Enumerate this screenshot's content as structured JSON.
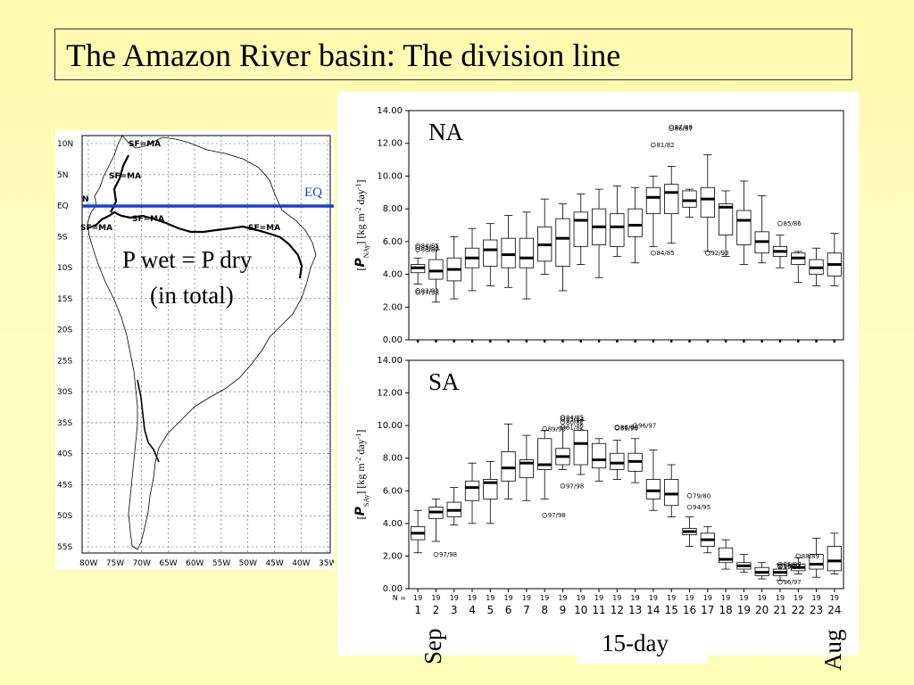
{
  "slide": {
    "title": "The Amazon River basin: The division line"
  },
  "map": {
    "lat_ticks": [
      "10N",
      "5N",
      "EQ",
      "5S",
      "10S",
      "15S",
      "20S",
      "25S",
      "30S",
      "35S",
      "40S",
      "45S",
      "50S",
      "55S"
    ],
    "lon_ticks": [
      "80W",
      "75W",
      "70W",
      "65W",
      "60W",
      "55W",
      "50W",
      "45W",
      "40W",
      "35W"
    ],
    "region_labels": [
      {
        "text": "SF=MA"
      },
      {
        "text": "SF=MA"
      },
      {
        "text": "SF=MA"
      },
      {
        "text": "SF=MA"
      },
      {
        "text": "SF=MA"
      },
      {
        "text": "N"
      }
    ],
    "eq_label": "EQ",
    "eq_line_color": "#1b3fd1",
    "annotation_line1": "P wet = P dry",
    "annotation_line2": "(in total)"
  },
  "chart_data": [
    {
      "type": "box",
      "panel_label": "NA",
      "ylabel_prefix": "[",
      "ylabel_symbol": "P",
      "ylabel_subscript": "NAy",
      "ylabel_unit": "] [kg m",
      "ylabel_exp1": "-2",
      "ylabel_mid": " day",
      "ylabel_exp2": "-1",
      "ylabel_end": "]",
      "ylim": [
        0,
        14
      ],
      "yticks": [
        "0.00",
        "2.00",
        "4.00",
        "6.00",
        "8.00",
        "10.00",
        "12.00",
        "14.00"
      ],
      "periods": [
        1,
        2,
        3,
        4,
        5,
        6,
        7,
        8,
        9,
        10,
        11,
        12,
        13,
        14,
        15,
        16,
        17,
        18,
        19,
        20,
        21,
        22,
        23,
        24
      ],
      "boxes": [
        {
          "min": 3.4,
          "q1": 4.1,
          "median": 4.4,
          "q3": 4.6,
          "max": 5.0
        },
        {
          "min": 2.3,
          "q1": 3.7,
          "median": 4.2,
          "q3": 4.9,
          "max": 5.5
        },
        {
          "min": 2.5,
          "q1": 3.6,
          "median": 4.3,
          "q3": 5.0,
          "max": 6.3
        },
        {
          "min": 3.0,
          "q1": 4.4,
          "median": 5.0,
          "q3": 5.6,
          "max": 6.8
        },
        {
          "min": 3.3,
          "q1": 4.5,
          "median": 5.5,
          "q3": 6.1,
          "max": 7.1
        },
        {
          "min": 3.2,
          "q1": 4.4,
          "median": 5.2,
          "q3": 6.2,
          "max": 7.6
        },
        {
          "min": 2.5,
          "q1": 4.4,
          "median": 5.0,
          "q3": 6.2,
          "max": 7.8
        },
        {
          "min": 4.0,
          "q1": 4.8,
          "median": 5.8,
          "q3": 6.9,
          "max": 8.6
        },
        {
          "min": 3.0,
          "q1": 4.5,
          "median": 6.2,
          "q3": 7.4,
          "max": 8.3
        },
        {
          "min": 4.6,
          "q1": 5.7,
          "median": 7.3,
          "q3": 7.8,
          "max": 8.9
        },
        {
          "min": 3.8,
          "q1": 5.8,
          "median": 6.9,
          "q3": 8.0,
          "max": 9.2
        },
        {
          "min": 5.1,
          "q1": 5.7,
          "median": 6.9,
          "q3": 7.7,
          "max": 9.4
        },
        {
          "min": 4.7,
          "q1": 6.3,
          "median": 7.0,
          "q3": 8.0,
          "max": 9.3
        },
        {
          "min": 5.7,
          "q1": 7.7,
          "median": 8.7,
          "q3": 9.3,
          "max": 10.0
        },
        {
          "min": 5.9,
          "q1": 7.7,
          "median": 9.0,
          "q3": 9.5,
          "max": 10.6
        },
        {
          "min": 7.5,
          "q1": 8.1,
          "median": 8.5,
          "q3": 9.1,
          "max": 9.2
        },
        {
          "min": 5.4,
          "q1": 7.5,
          "median": 8.6,
          "q3": 9.3,
          "max": 11.3
        },
        {
          "min": 5.1,
          "q1": 6.4,
          "median": 8.1,
          "q3": 8.3,
          "max": 9.1
        },
        {
          "min": 4.6,
          "q1": 5.8,
          "median": 7.3,
          "q3": 7.9,
          "max": 9.7
        },
        {
          "min": 4.7,
          "q1": 5.3,
          "median": 6.0,
          "q3": 6.6,
          "max": 8.8
        },
        {
          "min": 4.4,
          "q1": 5.1,
          "median": 5.4,
          "q3": 5.7,
          "max": 6.4
        },
        {
          "min": 3.5,
          "q1": 4.6,
          "median": 5.0,
          "q3": 5.3,
          "max": 5.4
        },
        {
          "min": 3.3,
          "q1": 4.0,
          "median": 4.4,
          "q3": 4.9,
          "max": 5.6
        },
        {
          "min": 3.3,
          "q1": 3.9,
          "median": 4.6,
          "q3": 5.3,
          "max": 6.5
        }
      ],
      "outliers": [
        {
          "period": 1,
          "y": 5.75,
          "label": "84/85"
        },
        {
          "period": 1,
          "y": 5.65,
          "label": "85/86"
        },
        {
          "period": 1,
          "y": 5.5,
          "label": "86/87"
        },
        {
          "period": 1,
          "y": 3.0,
          "label": "92/93"
        },
        {
          "period": 1,
          "y": 2.9,
          "label": "97/98"
        },
        {
          "period": 14,
          "y": 11.9,
          "label": "81/82"
        },
        {
          "period": 15,
          "y": 13.0,
          "label": "87/88"
        },
        {
          "period": 15,
          "y": 12.9,
          "label": "86/87"
        },
        {
          "period": 14,
          "y": 5.3,
          "label": "84/85"
        },
        {
          "period": 17,
          "y": 5.3,
          "label": "92/93"
        },
        {
          "period": 21,
          "y": 7.1,
          "label": "85/86"
        }
      ]
    },
    {
      "type": "box",
      "panel_label": "SA",
      "ylabel_prefix": "[",
      "ylabel_symbol": "P",
      "ylabel_subscript": "SAy",
      "ylabel_unit": "] [kg m",
      "ylabel_exp1": "-2",
      "ylabel_mid": " day",
      "ylabel_exp2": "-1",
      "ylabel_end": "]",
      "ylim": [
        0,
        14
      ],
      "yticks": [
        "0.00",
        "2.00",
        "4.00",
        "6.00",
        "8.00",
        "10.00",
        "12.00",
        "14.00"
      ],
      "periods": [
        1,
        2,
        3,
        4,
        5,
        6,
        7,
        8,
        9,
        10,
        11,
        12,
        13,
        14,
        15,
        16,
        17,
        18,
        19,
        20,
        21,
        22,
        23,
        24
      ],
      "n_label": "N =",
      "n_values": [
        "19",
        "19",
        "19",
        "19",
        "19",
        "19",
        "19",
        "19",
        "19",
        "19",
        "19",
        "19",
        "19",
        "19",
        "19",
        "19",
        "19",
        "19",
        "19",
        "19",
        "19",
        "19",
        "19",
        "19"
      ],
      "boxes": [
        {
          "min": 2.2,
          "q1": 3.0,
          "median": 3.4,
          "q3": 3.8,
          "max": 4.8
        },
        {
          "min": 2.9,
          "q1": 4.3,
          "median": 4.7,
          "q3": 5.0,
          "max": 5.5
        },
        {
          "min": 3.9,
          "q1": 4.4,
          "median": 4.8,
          "q3": 5.3,
          "max": 6.2
        },
        {
          "min": 4.0,
          "q1": 5.4,
          "median": 6.2,
          "q3": 6.6,
          "max": 7.7
        },
        {
          "min": 4.0,
          "q1": 5.5,
          "median": 6.5,
          "q3": 6.7,
          "max": 7.8
        },
        {
          "min": 5.5,
          "q1": 6.6,
          "median": 7.4,
          "q3": 8.4,
          "max": 10.1
        },
        {
          "min": 5.4,
          "q1": 6.8,
          "median": 7.7,
          "q3": 7.9,
          "max": 9.4
        },
        {
          "min": 5.5,
          "q1": 7.3,
          "median": 7.6,
          "q3": 9.2,
          "max": 9.7
        },
        {
          "min": 7.3,
          "q1": 7.6,
          "median": 8.1,
          "q3": 8.6,
          "max": 9.9
        },
        {
          "min": 7.0,
          "q1": 7.6,
          "median": 8.9,
          "q3": 9.7,
          "max": 10.3
        },
        {
          "min": 6.6,
          "q1": 7.4,
          "median": 7.9,
          "q3": 8.9,
          "max": 9.2
        },
        {
          "min": 6.7,
          "q1": 7.3,
          "median": 7.7,
          "q3": 8.3,
          "max": 9.1
        },
        {
          "min": 6.5,
          "q1": 7.2,
          "median": 7.8,
          "q3": 8.3,
          "max": 9.2
        },
        {
          "min": 4.8,
          "q1": 5.5,
          "median": 6.0,
          "q3": 6.7,
          "max": 8.5
        },
        {
          "min": 4.4,
          "q1": 5.1,
          "median": 5.8,
          "q3": 6.7,
          "max": 7.6
        },
        {
          "min": 2.6,
          "q1": 3.3,
          "median": 3.5,
          "q3": 3.7,
          "max": 4.4
        },
        {
          "min": 2.2,
          "q1": 2.6,
          "median": 3.0,
          "q3": 3.4,
          "max": 3.8
        },
        {
          "min": 1.2,
          "q1": 1.6,
          "median": 1.8,
          "q3": 2.5,
          "max": 3.0
        },
        {
          "min": 1.0,
          "q1": 1.2,
          "median": 1.4,
          "q3": 1.6,
          "max": 2.1
        },
        {
          "min": 0.6,
          "q1": 0.8,
          "median": 1.0,
          "q3": 1.3,
          "max": 1.6
        },
        {
          "min": 0.5,
          "q1": 0.8,
          "median": 1.0,
          "q3": 1.2,
          "max": 1.5
        },
        {
          "min": 0.9,
          "q1": 1.1,
          "median": 1.3,
          "q3": 1.5,
          "max": 1.9
        },
        {
          "min": 0.7,
          "q1": 1.2,
          "median": 1.5,
          "q3": 2.1,
          "max": 3.1
        },
        {
          "min": 0.9,
          "q1": 1.1,
          "median": 1.7,
          "q3": 2.6,
          "max": 3.4
        }
      ],
      "outliers": [
        {
          "period": 2,
          "y": 2.1,
          "label": "97/98"
        },
        {
          "period": 8,
          "y": 9.8,
          "label": "89/90"
        },
        {
          "period": 8,
          "y": 4.5,
          "label": "97/98"
        },
        {
          "period": 9,
          "y": 10.5,
          "label": "84/85"
        },
        {
          "period": 9,
          "y": 10.4,
          "label": "83/84"
        },
        {
          "period": 9,
          "y": 10.2,
          "label": "80/81"
        },
        {
          "period": 9,
          "y": 9.9,
          "label": "81/82"
        },
        {
          "period": 9,
          "y": 6.3,
          "label": "97/98"
        },
        {
          "period": 12,
          "y": 9.9,
          "label": "88/89"
        },
        {
          "period": 12,
          "y": 9.85,
          "label": "89/90"
        },
        {
          "period": 13,
          "y": 10.0,
          "label": "96/97"
        },
        {
          "period": 16,
          "y": 5.7,
          "label": "79/80"
        },
        {
          "period": 16,
          "y": 5.0,
          "label": "94/95"
        },
        {
          "period": 21,
          "y": 1.5,
          "label": "86/87"
        },
        {
          "period": 21,
          "y": 1.4,
          "label": "96/97"
        },
        {
          "period": 21,
          "y": 1.35,
          "label": "95/96"
        },
        {
          "period": 21,
          "y": 0.4,
          "label": "96/97"
        },
        {
          "period": 22,
          "y": 2.0,
          "label": "88/89"
        }
      ]
    }
  ],
  "x_axis": {
    "start_label": "Sep",
    "center_label": "15-day",
    "end_label": "Aug"
  }
}
